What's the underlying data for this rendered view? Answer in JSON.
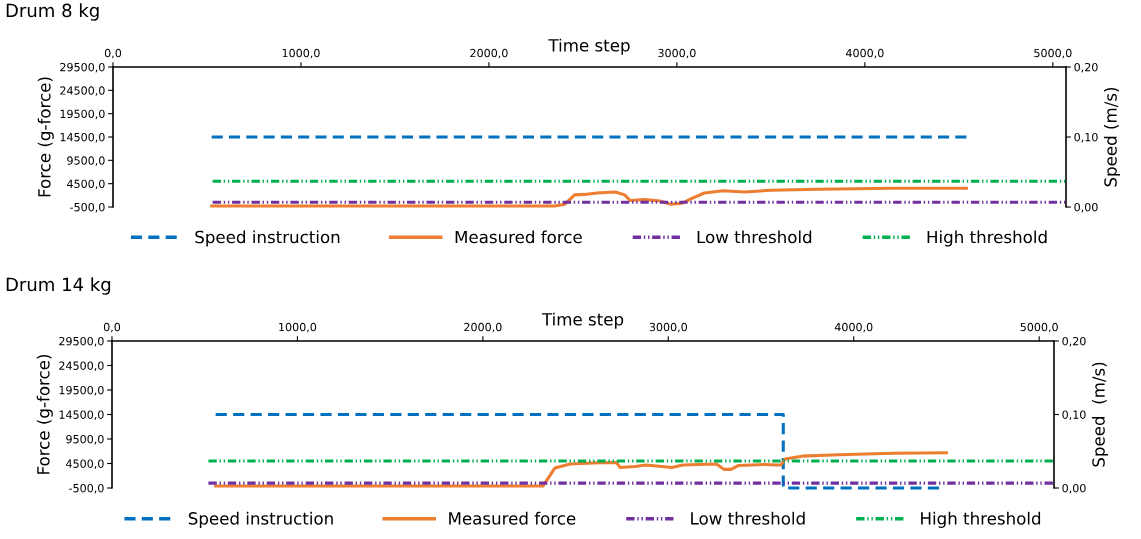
{
  "chart_data": [
    {
      "type": "line",
      "title": "Drum 8 kg",
      "xlabel": "Time step",
      "ylabel": "Force (g-force)",
      "y2label": "Speed (m/s)",
      "legend": "bottom",
      "xlim": [
        0,
        5070
      ],
      "xticks": [
        {
          "value": 0,
          "label": "0,0"
        },
        {
          "value": 1000,
          "label": "1000,0"
        },
        {
          "value": 2000,
          "label": "2000,0"
        },
        {
          "value": 3000,
          "label": "3000,0"
        },
        {
          "value": 4000,
          "label": "4000,0"
        },
        {
          "value": 5000,
          "label": "5000,0"
        }
      ],
      "ylim": [
        -500,
        29500
      ],
      "yticks": [
        {
          "value": -500,
          "label": "-500,0"
        },
        {
          "value": 4500,
          "label": "4500,0"
        },
        {
          "value": 9500,
          "label": "9500,0"
        },
        {
          "value": 14500,
          "label": "14500,0"
        },
        {
          "value": 19500,
          "label": "19500,0"
        },
        {
          "value": 24500,
          "label": "24500,0"
        },
        {
          "value": 29500,
          "label": "29500,0"
        }
      ],
      "y2lim": [
        0,
        0.2
      ],
      "y2ticks": [
        {
          "value": 0,
          "label": "0,00"
        },
        {
          "value": 0.1,
          "label": "0,10"
        },
        {
          "value": 0.2,
          "label": "0,20"
        }
      ],
      "series": [
        {
          "name": "Speed instruction",
          "color": "#0070c0",
          "axis": "y2",
          "line_style": "dashed",
          "x": [
            525,
            4540
          ],
          "values": [
            0.1,
            0.1
          ]
        },
        {
          "name": "Measured force",
          "color": "#ed7d31",
          "line_style": "solid",
          "x": [
            525,
            1500,
            2350,
            2404,
            2456,
            2510,
            2574,
            2673,
            2722,
            2751,
            2830,
            2910,
            2968,
            3027,
            3077,
            3146,
            3245,
            3362,
            3500,
            3755,
            4149,
            4540
          ],
          "values": [
            -300,
            -300,
            -300,
            100,
            2100,
            2200,
            2500,
            2700,
            2100,
            900,
            1100,
            800,
            100,
            300,
            1300,
            2500,
            3000,
            2700,
            3100,
            3300,
            3500,
            3500
          ]
        },
        {
          "name": "Low threshold",
          "color": "#7030a0",
          "line_style": "dashdotdot",
          "x": [
            530,
            5070
          ],
          "values": [
            500,
            500
          ]
        },
        {
          "name": "High threshold",
          "color": "#00b050",
          "line_style": "dashdotdot",
          "x": [
            530,
            5070
          ],
          "values": [
            5000,
            5000
          ]
        }
      ]
    },
    {
      "type": "line",
      "title": "Drum 14 kg",
      "xlabel": "Time step",
      "ylabel": "Force (g-force)",
      "y2label": "Speed  (m/s)",
      "legend": "bottom",
      "xlim": [
        0,
        5080
      ],
      "xticks": [
        {
          "value": 0,
          "label": "0,0"
        },
        {
          "value": 1000,
          "label": "1000,0"
        },
        {
          "value": 2000,
          "label": "2000,0"
        },
        {
          "value": 3000,
          "label": "3000,0"
        },
        {
          "value": 4000,
          "label": "4000,0"
        },
        {
          "value": 5000,
          "label": "5000,0"
        }
      ],
      "ylim": [
        -500,
        29500
      ],
      "yticks": [
        {
          "value": -500,
          "label": "-500,0"
        },
        {
          "value": 4500,
          "label": "4500,0"
        },
        {
          "value": 9500,
          "label": "9500,0"
        },
        {
          "value": 14500,
          "label": "14500,0"
        },
        {
          "value": 19500,
          "label": "19500,0"
        },
        {
          "value": 24500,
          "label": "24500,0"
        },
        {
          "value": 29500,
          "label": "29500,0"
        }
      ],
      "y2lim": [
        0,
        0.2
      ],
      "y2ticks": [
        {
          "value": 0,
          "label": "0,00"
        },
        {
          "value": 0.1,
          "label": "0,10"
        },
        {
          "value": 0.2,
          "label": "0,20"
        }
      ],
      "series": [
        {
          "name": "Speed instruction",
          "color": "#0070c0",
          "axis": "y2",
          "line_style": "dashed",
          "x": [
            559,
            3620,
            3620,
            4460
          ],
          "values": [
            0.1,
            0.1,
            0,
            0
          ]
        },
        {
          "name": "Measured force",
          "color": "#ed7d31",
          "line_style": "solid",
          "x": [
            559,
            1500,
            2324,
            2389,
            2470,
            2595,
            2720,
            2740,
            2820,
            2879,
            3019,
            3079,
            3260,
            3300,
            3338,
            3380,
            3520,
            3580,
            3608,
            3630,
            3720,
            3920,
            4218,
            4500
          ],
          "values": [
            -100,
            -100,
            -100,
            3600,
            4400,
            4600,
            4700,
            3700,
            3900,
            4200,
            3700,
            4200,
            4400,
            3300,
            3300,
            4100,
            4300,
            4200,
            4200,
            5400,
            6000,
            6300,
            6600,
            6700
          ]
        },
        {
          "name": "Low threshold",
          "color": "#7030a0",
          "line_style": "dashdotdot",
          "x": [
            520,
            5080
          ],
          "values": [
            500,
            500
          ]
        },
        {
          "name": "High threshold",
          "color": "#00b050",
          "line_style": "dashdotdot",
          "x": [
            520,
            5080
          ],
          "values": [
            5000,
            5000
          ]
        }
      ]
    }
  ]
}
